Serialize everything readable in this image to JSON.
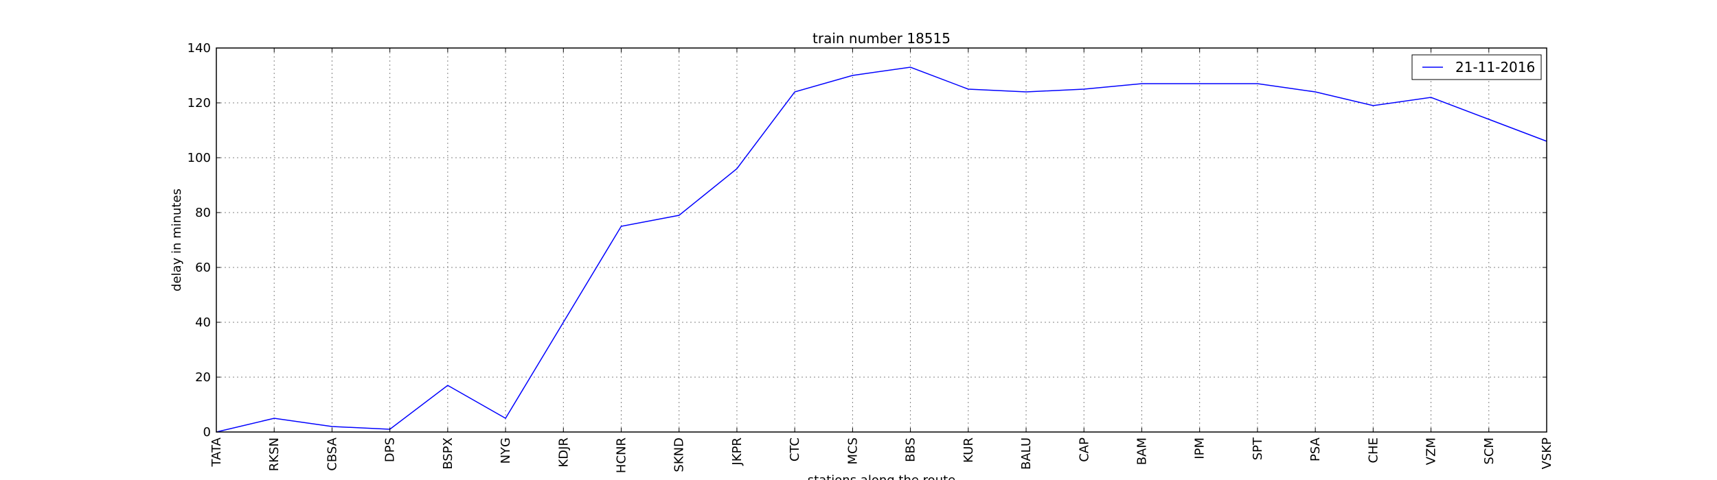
{
  "chart_data": {
    "type": "line",
    "title": "train number 18515",
    "xlabel": "stations along the route",
    "ylabel": "delay in minutes",
    "categories": [
      "TATA",
      "RKSN",
      "CBSA",
      "DPS",
      "BSPX",
      "NYG",
      "KDJR",
      "HCNR",
      "SKND",
      "JKPR",
      "CTC",
      "MCS",
      "BBS",
      "KUR",
      "BALU",
      "CAP",
      "BAM",
      "IPM",
      "SPT",
      "PSA",
      "CHE",
      "VZM",
      "SCM",
      "VSKP"
    ],
    "series": [
      {
        "name": "21-11-2016",
        "color": "#0000ff",
        "values": [
          0,
          5,
          2,
          1,
          17,
          5,
          40,
          75,
          79,
          96,
          124,
          130,
          133,
          125,
          124,
          125,
          127,
          127,
          127,
          124,
          119,
          122,
          114,
          106
        ]
      }
    ],
    "ylim": [
      0,
      140
    ],
    "yticks": [
      0,
      20,
      40,
      60,
      80,
      100,
      120,
      140
    ],
    "grid": true,
    "legend_position": "top-right"
  }
}
